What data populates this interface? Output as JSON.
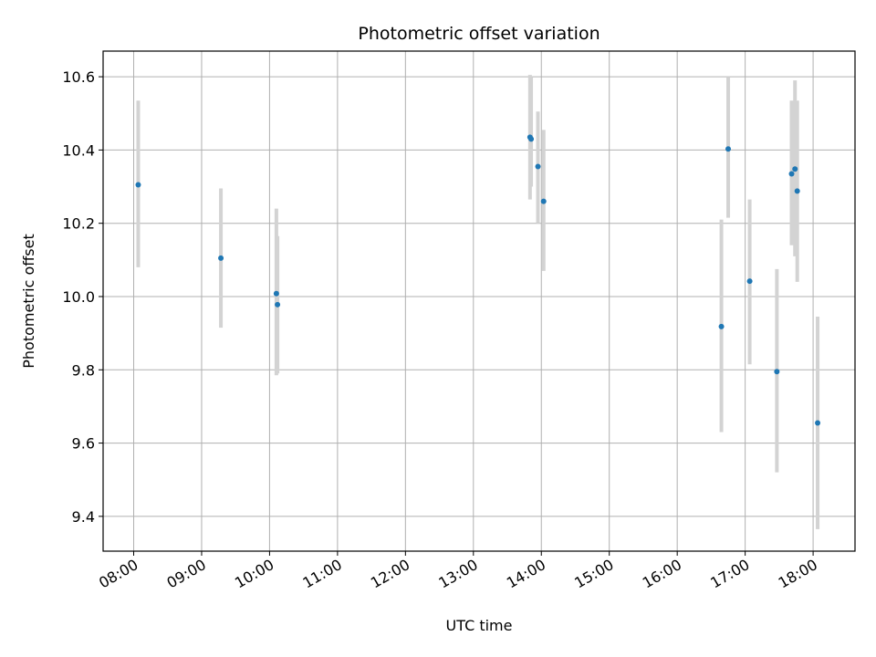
{
  "chart_data": {
    "type": "scatter",
    "title": "Photometric offset variation",
    "xlabel": "UTC time",
    "ylabel": "Photometric offset",
    "x_unit": "hours UTC",
    "xlim": [
      "07:33",
      "18:37"
    ],
    "ylim": [
      9.305,
      10.67
    ],
    "x_ticks": [
      "08:00",
      "09:00",
      "10:00",
      "11:00",
      "12:00",
      "13:00",
      "14:00",
      "15:00",
      "16:00",
      "17:00",
      "18:00"
    ],
    "y_ticks": [
      9.4,
      9.6,
      9.8,
      10.0,
      10.2,
      10.4,
      10.6
    ],
    "y_tick_labels": [
      "9.4",
      "9.6",
      "9.8",
      "10.0",
      "10.2",
      "10.4",
      "10.6"
    ],
    "grid": true,
    "marker_color": "#1f77b4",
    "errorbar_color": "#d3d3d3",
    "points": [
      {
        "time": "08:04",
        "y": 10.305,
        "ylow": 10.08,
        "yhigh": 10.535
      },
      {
        "time": "09:17",
        "y": 10.105,
        "ylow": 9.915,
        "yhigh": 10.295
      },
      {
        "time": "10:06",
        "y": 10.008,
        "ylow": 9.785,
        "yhigh": 10.24
      },
      {
        "time": "10:07",
        "y": 9.978,
        "ylow": 9.79,
        "yhigh": 10.165
      },
      {
        "time": "13:50",
        "y": 10.435,
        "ylow": 10.265,
        "yhigh": 10.605
      },
      {
        "time": "13:51",
        "y": 10.43,
        "ylow": 10.3,
        "yhigh": 10.6
      },
      {
        "time": "13:57",
        "y": 10.355,
        "ylow": 10.2,
        "yhigh": 10.505
      },
      {
        "time": "14:02",
        "y": 10.26,
        "ylow": 10.07,
        "yhigh": 10.455
      },
      {
        "time": "16:39",
        "y": 9.918,
        "ylow": 9.63,
        "yhigh": 10.21
      },
      {
        "time": "16:45",
        "y": 10.403,
        "ylow": 10.215,
        "yhigh": 10.6
      },
      {
        "time": "17:04",
        "y": 10.042,
        "ylow": 9.815,
        "yhigh": 10.265
      },
      {
        "time": "17:28",
        "y": 9.795,
        "ylow": 9.52,
        "yhigh": 10.075
      },
      {
        "time": "17:41",
        "y": 10.335,
        "ylow": 10.14,
        "yhigh": 10.535
      },
      {
        "time": "17:44",
        "y": 10.348,
        "ylow": 10.11,
        "yhigh": 10.59
      },
      {
        "time": "17:46",
        "y": 10.288,
        "ylow": 10.04,
        "yhigh": 10.535
      },
      {
        "time": "18:04",
        "y": 9.655,
        "ylow": 9.365,
        "yhigh": 9.945
      }
    ]
  }
}
